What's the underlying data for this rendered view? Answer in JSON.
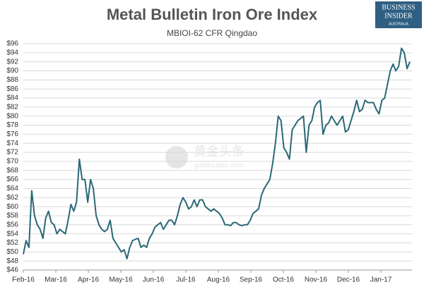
{
  "chart_data": {
    "type": "line",
    "title": "Metal Bulletin Iron Ore Index",
    "subtitle": "MBIOI-62 CFR Qingdao",
    "logo": {
      "line1": "BUSINESS",
      "line2": "INSIDER",
      "line3": "AUSTRALIA"
    },
    "watermark": {
      "line1": "黄金头条",
      "line2": "goldtoutiao.com"
    },
    "xticks": [
      "Feb-16",
      "Mar-16",
      "Apr-16",
      "May-16",
      "Jun-16",
      "Jul-16",
      "Aug-16",
      "Sep-16",
      "Oct-16",
      "Nov-16",
      "Dec-16",
      "Jan-17"
    ],
    "color": "#2a6877",
    "grid": true,
    "ylim": [
      46,
      96
    ],
    "yticks": [
      {
        "value": 46,
        "label": "$46"
      },
      {
        "value": 48,
        "label": "$48"
      },
      {
        "value": 50,
        "label": "$50"
      },
      {
        "value": 52,
        "label": "$52"
      },
      {
        "value": 54,
        "label": "$54"
      },
      {
        "value": 56,
        "label": "$56"
      },
      {
        "value": 58,
        "label": "$58"
      },
      {
        "value": 60,
        "label": "$60"
      },
      {
        "value": 62,
        "label": "$62"
      },
      {
        "value": 64,
        "label": "$64"
      },
      {
        "value": 66,
        "label": "$66"
      },
      {
        "value": 68,
        "label": "$68"
      },
      {
        "value": 70,
        "label": "$70"
      },
      {
        "value": 72,
        "label": "$72"
      },
      {
        "value": 74,
        "label": "$74"
      },
      {
        "value": 76,
        "label": "$76"
      },
      {
        "value": 78,
        "label": "$78"
      },
      {
        "value": 80,
        "label": "$80"
      },
      {
        "value": 82,
        "label": "$82"
      },
      {
        "value": 84,
        "label": "$84"
      },
      {
        "value": 86,
        "label": "$86"
      },
      {
        "value": 88,
        "label": "$88"
      },
      {
        "value": 90,
        "label": "$90"
      },
      {
        "value": 92,
        "label": "$92"
      },
      {
        "value": 94,
        "label": "$94"
      },
      {
        "value": 96,
        "label": "$96"
      }
    ],
    "values": [
      49.5,
      52.5,
      51,
      63.5,
      58,
      56,
      55,
      53,
      57.5,
      59,
      56.5,
      56,
      54,
      55,
      54.5,
      54,
      57,
      60.5,
      59,
      61,
      70.5,
      66,
      66,
      61,
      66,
      64,
      58,
      56,
      55,
      54.5,
      55,
      57,
      53,
      52,
      51,
      50,
      50.5,
      48.5,
      51,
      52.5,
      52.8,
      53,
      51,
      51.5,
      51,
      53,
      54,
      55.5,
      56,
      56.5,
      55,
      56,
      57,
      57,
      56,
      58,
      60.5,
      62,
      61,
      59.5,
      60,
      61.5,
      60,
      61.5,
      61.5,
      60,
      59.5,
      59,
      59.5,
      59,
      58.5,
      57.5,
      56,
      56,
      55.8,
      56.5,
      56.5,
      56,
      55.8,
      56,
      56,
      57,
      58.5,
      59,
      59.5,
      62.5,
      64,
      65,
      66,
      69.5,
      74,
      80,
      79,
      73,
      72,
      70.5,
      77,
      78,
      79,
      79.5,
      80,
      72,
      78,
      79,
      82,
      83,
      83.5,
      76,
      78,
      78.5,
      80,
      79,
      78,
      79,
      80,
      76.5,
      77,
      79,
      81,
      83.5,
      81,
      81.5,
      83.5,
      83,
      83,
      83,
      81.5,
      80.5,
      83.5,
      84,
      87,
      90,
      91.5,
      90,
      91,
      95,
      94,
      90.5,
      92
    ]
  }
}
